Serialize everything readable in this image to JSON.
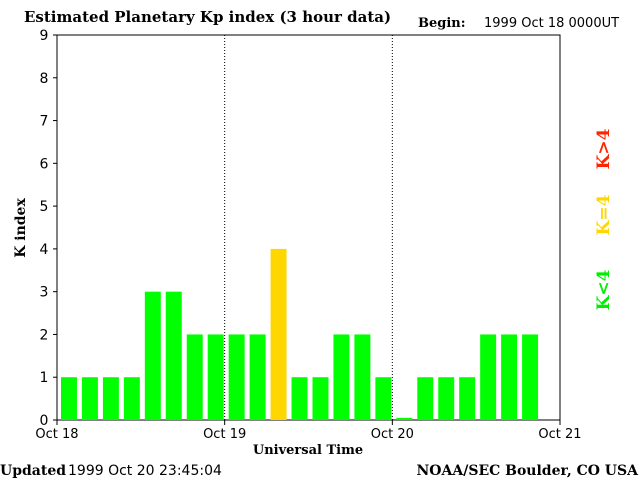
{
  "chart_data": {
    "type": "bar",
    "title": "Estimated Planetary Kp index (3 hour data)",
    "begin_label": "Begin:",
    "begin_value": "1999 Oct 18 0000UT",
    "xlabel": "Universal Time",
    "ylabel": "K index",
    "ylim": [
      0,
      9
    ],
    "yticks": [
      "0",
      "1",
      "2",
      "3",
      "4",
      "5",
      "6",
      "7",
      "8",
      "9"
    ],
    "xticks": [
      "Oct 18",
      "Oct 19",
      "Oct 20",
      "Oct 21"
    ],
    "day_separators": [
      "Oct 19",
      "Oct 20"
    ],
    "values": [
      1,
      1,
      1,
      1,
      3,
      3,
      2,
      2,
      2,
      2,
      4,
      1,
      1,
      2,
      2,
      1,
      0.05,
      1,
      1,
      1,
      2,
      2,
      2
    ],
    "bars_per_day": 8,
    "colors": {
      "low": "#00ff00",
      "equal": "#ffd700",
      "high": "#ff2400"
    },
    "legend": {
      "low": "K<4",
      "equal": "K=4",
      "high": "K>4"
    }
  },
  "footer": {
    "updated_label": "Updated",
    "updated_value": "1999 Oct 20 23:45:04",
    "credit": "NOAA/SEC Boulder, CO USA"
  }
}
